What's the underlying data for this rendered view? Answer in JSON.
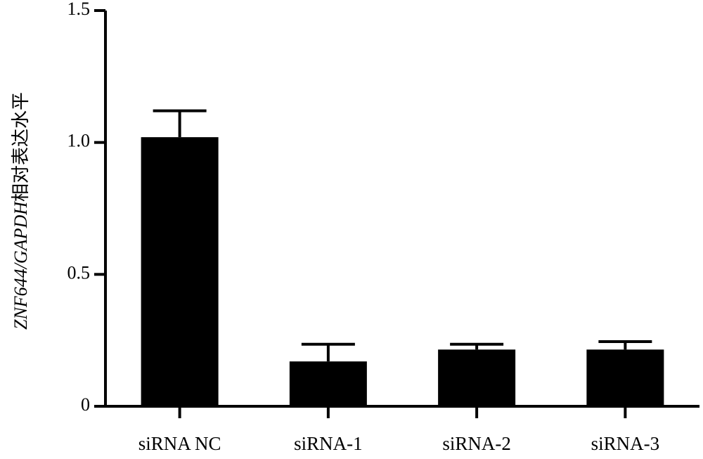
{
  "chart_data": {
    "type": "bar",
    "categories": [
      "siRNA NC",
      "siRNA-1",
      "siRNA-2",
      "siRNA-3"
    ],
    "values": [
      1.02,
      0.17,
      0.215,
      0.215
    ],
    "errors": [
      0.1,
      0.065,
      0.02,
      0.03
    ],
    "ylabel": {
      "gene": "ZNF644/GAPDH",
      "text": "相对表达水平"
    },
    "ylim": [
      0,
      1.5
    ],
    "yticks": [
      0,
      0.5,
      1.0,
      1.5
    ],
    "ytick_labels": [
      "0",
      "0.5",
      "1.0",
      "1.5"
    ],
    "grid": false,
    "bar_color": "#000000"
  }
}
